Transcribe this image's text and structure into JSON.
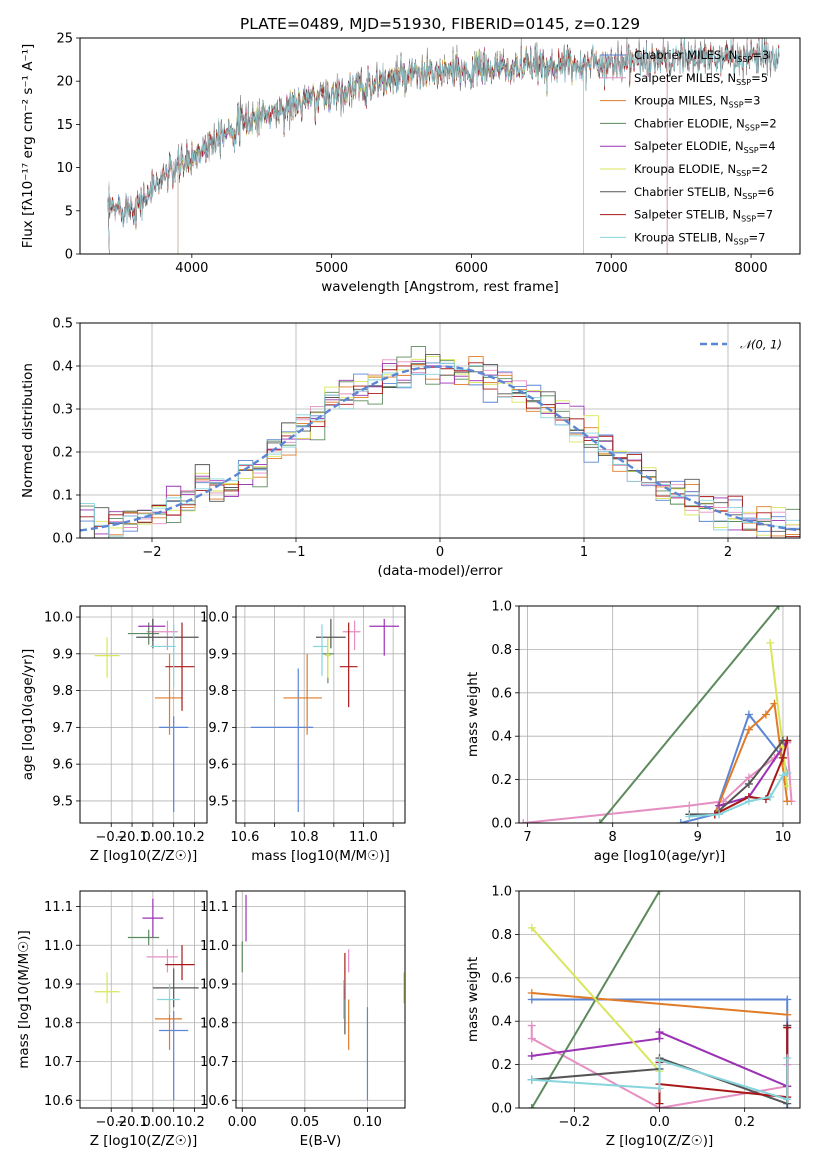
{
  "title": "PLATE=0489, MJD=51930, FIBERID=0145, z=0.129",
  "colors": {
    "Chabrier MILES": "#5b86d6",
    "Salpeter MILES": "#e58fc3",
    "Kroupa MILES": "#e07b28",
    "Chabrier ELODIE": "#5c8a5c",
    "Salpeter ELODIE": "#9b32b4",
    "Kroupa ELODIE": "#d8e65a",
    "Chabrier STELIB": "#555555",
    "Salpeter STELIB": "#a81818",
    "Kroupa STELIB": "#86d5dd"
  },
  "chart_data": [
    {
      "type": "line",
      "xlabel": "wavelength [Angstrom, rest frame]",
      "ylabel": "Flux [fλ10⁻¹⁷ erg cm⁻² s⁻¹ A⁻¹]",
      "xlim": [
        3200,
        8350
      ],
      "ylim": [
        0,
        25
      ],
      "xticks": [
        4000,
        5000,
        6000,
        7000,
        8000
      ],
      "yticks": [
        0,
        5,
        10,
        15,
        20,
        25
      ],
      "grid": false,
      "legend_position": "right",
      "legend": [
        {
          "name": "Chabrier MILES",
          "sub": "SSP",
          "n": "3"
        },
        {
          "name": "Salpeter MILES",
          "sub": "SSP",
          "n": "5"
        },
        {
          "name": "Kroupa MILES",
          "sub": "SSP",
          "n": "3"
        },
        {
          "name": "Chabrier ELODIE",
          "sub": "SSP",
          "n": "2"
        },
        {
          "name": "Salpeter ELODIE",
          "sub": "SSP",
          "n": "4"
        },
        {
          "name": "Kroupa ELODIE",
          "sub": "SSP",
          "n": "2"
        },
        {
          "name": "Chabrier STELIB",
          "sub": "SSP",
          "n": "6"
        },
        {
          "name": "Salpeter STELIB",
          "sub": "SSP",
          "n": "7"
        },
        {
          "name": "Kroupa STELIB",
          "sub": "SSP",
          "n": "7"
        }
      ],
      "continuum": {
        "x": [
          3400,
          3600,
          3800,
          4000,
          4200,
          4500,
          5000,
          5500,
          6000,
          6500,
          7000,
          7500,
          8000,
          8200
        ],
        "y": [
          5.2,
          5.5,
          9,
          11,
          14,
          16,
          18.5,
          20.5,
          21.2,
          21.8,
          22.2,
          22.6,
          22.9,
          23
        ]
      },
      "model_ranges": {
        "Chabrier MILES": [
          3400,
          7400
        ],
        "Salpeter MILES": [
          3400,
          7400
        ],
        "Kroupa MILES": [
          3400,
          7400
        ],
        "Chabrier ELODIE": [
          3900,
          6800
        ],
        "Salpeter ELODIE": [
          3900,
          6800
        ],
        "Kroupa ELODIE": [
          3900,
          6800
        ],
        "Chabrier STELIB": [
          3400,
          8200
        ],
        "Salpeter STELIB": [
          3400,
          8200
        ],
        "Kroupa STELIB": [
          3400,
          8200
        ]
      }
    },
    {
      "type": "histogram",
      "xlabel": "(data-model)/error",
      "ylabel": "Normed distribution",
      "xlim": [
        -2.5,
        2.5
      ],
      "ylim": [
        0,
        0.5
      ],
      "xticks": [
        -2,
        -1,
        0,
        1,
        2
      ],
      "yticks": [
        0.0,
        0.1,
        0.2,
        0.3,
        0.4,
        0.5
      ],
      "grid": true,
      "legend_position": "top-right",
      "gaussian_label": "𝒩(0, 1)",
      "bins": {
        "start": -2.5,
        "width": 0.1,
        "count": 50
      }
    },
    {
      "type": "errorbar",
      "xlabel": "Z [log10(Z/Z☉)]",
      "ylabel": "age [log10(age/yr)]",
      "xlim": [
        -0.35,
        0.26
      ],
      "ylim": [
        9.44,
        10.03
      ],
      "xticks": [
        -0.2,
        -0.1,
        0.0,
        0.1,
        0.2
      ],
      "yticks": [
        9.5,
        9.6,
        9.7,
        9.8,
        9.9,
        10.0
      ],
      "grid": true,
      "points": [
        {
          "model": "Chabrier MILES",
          "x": 0.1,
          "y": 9.7,
          "xerr": [
            0.07,
            0.07
          ],
          "yerr": [
            0.23,
            0.03
          ]
        },
        {
          "model": "Salpeter MILES",
          "x": 0.07,
          "y": 9.96,
          "xerr": [
            0.1,
            0.05
          ],
          "yerr": [
            0.05,
            0.03
          ]
        },
        {
          "model": "Kroupa MILES",
          "x": 0.08,
          "y": 9.78,
          "xerr": [
            0.07,
            0.06
          ],
          "yerr": [
            0.1,
            0.12
          ]
        },
        {
          "model": "Chabrier ELODIE",
          "x": -0.02,
          "y": 9.955,
          "xerr": [
            0.1,
            0.05
          ],
          "yerr": [
            0.03,
            0.03
          ]
        },
        {
          "model": "Salpeter ELODIE",
          "x": 0.0,
          "y": 9.975,
          "xerr": [
            0.07,
            0.06
          ],
          "yerr": [
            0.04,
            0.02
          ]
        },
        {
          "model": "Kroupa ELODIE",
          "x": -0.22,
          "y": 9.895,
          "xerr": [
            0.06,
            0.06
          ],
          "yerr": [
            0.06,
            0.05
          ]
        },
        {
          "model": "Chabrier STELIB",
          "x": 0.0,
          "y": 9.945,
          "xerr": [
            0.08,
            0.22
          ],
          "yerr": [
            0.03,
            0.05
          ]
        },
        {
          "model": "Salpeter STELIB",
          "x": 0.14,
          "y": 9.865,
          "xerr": [
            0.08,
            0.06
          ],
          "yerr": [
            0.12,
            0.12
          ]
        },
        {
          "model": "Kroupa STELIB",
          "x": 0.1,
          "y": 9.92,
          "xerr": [
            0.11,
            0.01
          ],
          "yerr": [
            0.11,
            0.06
          ]
        }
      ]
    },
    {
      "type": "errorbar",
      "xlabel": "mass [log10(M/M☉)]",
      "xlim": [
        10.57,
        11.14
      ],
      "ylim": [
        9.44,
        10.03
      ],
      "xticks": [
        10.6,
        10.7,
        10.8,
        10.9,
        11.0,
        11.1
      ],
      "yticks": [
        9.5,
        9.6,
        9.7,
        9.8,
        9.9,
        10.0
      ],
      "tick_labels_x": [
        "10.6",
        "",
        "10.8",
        "",
        "11.0",
        ""
      ],
      "grid": true,
      "points": [
        {
          "model": "Chabrier MILES",
          "x": 10.78,
          "y": 9.7,
          "xerr": [
            0.16,
            0.05
          ],
          "yerr": [
            0.23,
            0.16
          ]
        },
        {
          "model": "Salpeter MILES",
          "x": 10.97,
          "y": 9.96,
          "xerr": [
            0.04,
            0.02
          ],
          "yerr": [
            0.05,
            0.03
          ]
        },
        {
          "model": "Kroupa MILES",
          "x": 10.81,
          "y": 9.78,
          "xerr": [
            0.08,
            0.05
          ],
          "yerr": [
            0.1,
            0.12
          ]
        },
        {
          "model": "Chabrier ELODIE",
          "x": 10.88,
          "y": 9.9,
          "xerr": [
            0.02,
            0.02
          ],
          "yerr": [
            0.08,
            0.04
          ]
        },
        {
          "model": "Salpeter ELODIE",
          "x": 11.07,
          "y": 9.975,
          "xerr": [
            0.05,
            0.05
          ],
          "yerr": [
            0.08,
            0.02
          ]
        },
        {
          "model": "Kroupa ELODIE",
          "x": 10.88,
          "y": 9.895,
          "xerr": [
            0.01,
            0.01
          ],
          "yerr": [
            0.06,
            0.05
          ]
        },
        {
          "model": "Chabrier STELIB",
          "x": 10.89,
          "y": 9.945,
          "xerr": [
            0.05,
            0.05
          ],
          "yerr": [
            0.03,
            0.05
          ]
        },
        {
          "model": "Salpeter STELIB",
          "x": 10.95,
          "y": 9.865,
          "xerr": [
            0.03,
            0.03
          ],
          "yerr": [
            0.11,
            0.12
          ]
        },
        {
          "model": "Kroupa STELIB",
          "x": 10.86,
          "y": 9.92,
          "xerr": [
            0.03,
            0.02
          ],
          "yerr": [
            0.08,
            0.06
          ]
        }
      ]
    },
    {
      "type": "line",
      "xlabel": "age [log10(age/yr)]",
      "ylabel": "mass weight",
      "xlim": [
        6.9,
        10.2
      ],
      "ylim": [
        0,
        1
      ],
      "xticks": [
        7,
        8,
        9,
        10
      ],
      "yticks": [
        0.0,
        0.2,
        0.4,
        0.6,
        0.8,
        1.0
      ],
      "grid": true,
      "series": [
        {
          "model": "Chabrier MILES",
          "x": [
            8.8,
            9.2,
            9.6,
            10.0,
            10.05
          ],
          "y": [
            0.0,
            0.04,
            0.5,
            0.3,
            0.23
          ]
        },
        {
          "model": "Salpeter MILES",
          "x": [
            6.95,
            8.9,
            9.3,
            9.6,
            9.9,
            10.05,
            10.1
          ],
          "y": [
            0.0,
            0.08,
            0.1,
            0.21,
            0.3,
            0.37,
            0.1
          ]
        },
        {
          "model": "Kroupa MILES",
          "x": [
            9.2,
            9.6,
            9.8,
            9.9,
            10.05
          ],
          "y": [
            0.04,
            0.43,
            0.5,
            0.55,
            0.1
          ]
        },
        {
          "model": "Chabrier ELODIE",
          "x": [
            7.85,
            9.95
          ],
          "y": [
            0.0,
            1.0
          ]
        },
        {
          "model": "Salpeter ELODIE",
          "x": [
            9.25,
            9.6,
            10.0,
            10.05
          ],
          "y": [
            0.08,
            0.12,
            0.35,
            0.38
          ]
        },
        {
          "model": "Kroupa ELODIE",
          "x": [
            9.85,
            10.0,
            10.05
          ],
          "y": [
            0.83,
            0.35,
            0.17
          ]
        },
        {
          "model": "Chabrier STELIB",
          "x": [
            8.9,
            9.2,
            9.6,
            10.0,
            10.05
          ],
          "y": [
            0.04,
            0.04,
            0.18,
            0.38,
            0.38
          ]
        },
        {
          "model": "Salpeter STELIB",
          "x": [
            9.2,
            9.6,
            9.8,
            10.0,
            10.05
          ],
          "y": [
            0.04,
            0.12,
            0.11,
            0.3,
            0.38
          ]
        },
        {
          "model": "Kroupa STELIB",
          "x": [
            8.9,
            9.25,
            9.6,
            9.85,
            10.0,
            10.05
          ],
          "y": [
            0.03,
            0.04,
            0.1,
            0.12,
            0.22,
            0.23
          ]
        }
      ]
    },
    {
      "type": "errorbar",
      "xlabel": "Z [log10(Z/Z☉)]",
      "ylabel": "mass [log10(M/M☉)]",
      "xlim": [
        -0.35,
        0.26
      ],
      "ylim": [
        10.58,
        11.14
      ],
      "xticks": [
        -0.2,
        -0.1,
        0.0,
        0.1,
        0.2
      ],
      "yticks": [
        10.6,
        10.7,
        10.8,
        10.9,
        11.0,
        11.1
      ],
      "grid": true,
      "points": [
        {
          "model": "Chabrier MILES",
          "x": 0.1,
          "y": 10.78,
          "xerr": [
            0.07,
            0.07
          ],
          "yerr": [
            0.18,
            0.05
          ]
        },
        {
          "model": "Salpeter MILES",
          "x": 0.07,
          "y": 10.97,
          "xerr": [
            0.1,
            0.05
          ],
          "yerr": [
            0.04,
            0.02
          ]
        },
        {
          "model": "Kroupa MILES",
          "x": 0.08,
          "y": 10.81,
          "xerr": [
            0.07,
            0.06
          ],
          "yerr": [
            0.08,
            0.05
          ]
        },
        {
          "model": "Chabrier ELODIE",
          "x": -0.02,
          "y": 11.02,
          "xerr": [
            0.1,
            0.05
          ],
          "yerr": [
            0.02,
            0.02
          ]
        },
        {
          "model": "Salpeter ELODIE",
          "x": 0.0,
          "y": 11.07,
          "xerr": [
            0.05,
            0.05
          ],
          "yerr": [
            0.05,
            0.05
          ]
        },
        {
          "model": "Kroupa ELODIE",
          "x": -0.22,
          "y": 10.88,
          "xerr": [
            0.06,
            0.06
          ],
          "yerr": [
            0.03,
            0.05
          ]
        },
        {
          "model": "Chabrier STELIB",
          "x": 0.1,
          "y": 10.89,
          "xerr": [
            0.1,
            0.12
          ],
          "yerr": [
            0.05,
            0.05
          ]
        },
        {
          "model": "Salpeter STELIB",
          "x": 0.14,
          "y": 10.95,
          "xerr": [
            0.08,
            0.06
          ],
          "yerr": [
            0.04,
            0.05
          ]
        },
        {
          "model": "Kroupa STELIB",
          "x": 0.08,
          "y": 10.86,
          "xerr": [
            0.06,
            0.05
          ],
          "yerr": [
            0.04,
            0.04
          ]
        }
      ]
    },
    {
      "type": "errorbar",
      "xlabel": "E(B-V)",
      "xlim": [
        -0.005,
        0.13
      ],
      "ylim": [
        10.58,
        11.14
      ],
      "xticks": [
        0.0,
        0.05,
        0.1
      ],
      "yticks": [
        10.6,
        10.7,
        10.8,
        10.9,
        11.0,
        11.1
      ],
      "tick_labels_x": [
        "0.00",
        "0.05",
        "0.10"
      ],
      "grid": true,
      "points": [
        {
          "model": "Chabrier MILES",
          "x": 0.1,
          "y": 10.7,
          "yerr": [
            0.1,
            0.14
          ]
        },
        {
          "model": "Salpeter MILES",
          "x": 0.085,
          "y": 10.97,
          "yerr": [
            0.04,
            0.02
          ]
        },
        {
          "model": "Kroupa MILES",
          "x": 0.085,
          "y": 10.81,
          "yerr": [
            0.08,
            0.05
          ]
        },
        {
          "model": "Chabrier ELODIE",
          "x": 0.0,
          "y": 10.97,
          "yerr": [
            0.04,
            0.04
          ]
        },
        {
          "model": "Salpeter ELODIE",
          "x": 0.003,
          "y": 11.07,
          "yerr": [
            0.06,
            0.06
          ]
        },
        {
          "model": "Kroupa ELODIE",
          "x": 0.129,
          "y": 10.89,
          "yerr": [
            0.04,
            0.04
          ]
        },
        {
          "model": "Chabrier STELIB",
          "x": 0.082,
          "y": 10.83,
          "yerr": [
            0.06,
            0.06
          ]
        },
        {
          "model": "Salpeter STELIB",
          "x": 0.082,
          "y": 10.92,
          "yerr": [
            0.06,
            0.06
          ]
        },
        {
          "model": "Kroupa STELIB",
          "x": 0.081,
          "y": 10.86,
          "yerr": [
            0.05,
            0.05
          ]
        }
      ]
    },
    {
      "type": "line",
      "xlabel": "Z [log10(Z/Z☉)]",
      "ylabel": "mass weight",
      "xlim": [
        -0.33,
        0.33
      ],
      "ylim": [
        0,
        1
      ],
      "xticks": [
        -0.2,
        0.0,
        0.2
      ],
      "yticks": [
        0.0,
        0.2,
        0.4,
        0.6,
        0.8,
        1.0
      ],
      "grid": true,
      "series": [
        {
          "model": "Chabrier MILES",
          "x": [
            -0.3,
            0.3,
            0.3
          ],
          "y": [
            0.5,
            0.5,
            0.0
          ]
        },
        {
          "model": "Salpeter MILES",
          "x": [
            -0.3,
            -0.3,
            0.0,
            0.3,
            0.3
          ],
          "y": [
            0.38,
            0.32,
            0.0,
            0.1,
            0.2
          ]
        },
        {
          "model": "Kroupa MILES",
          "x": [
            -0.3,
            0.3
          ],
          "y": [
            0.53,
            0.43
          ]
        },
        {
          "model": "Chabrier ELODIE",
          "x": [
            -0.3,
            0.0
          ],
          "y": [
            0.0,
            1.0
          ]
        },
        {
          "model": "Salpeter ELODIE",
          "x": [
            -0.3,
            0.0,
            0.0,
            0.3,
            0.3
          ],
          "y": [
            0.24,
            0.32,
            0.35,
            0.1,
            0.38
          ]
        },
        {
          "model": "Kroupa ELODIE",
          "x": [
            -0.3,
            0.0
          ],
          "y": [
            0.83,
            0.17
          ]
        },
        {
          "model": "Chabrier STELIB",
          "x": [
            -0.3,
            0.0,
            0.0,
            0.3,
            0.3
          ],
          "y": [
            0.13,
            0.18,
            0.23,
            0.02,
            0.38
          ]
        },
        {
          "model": "Salpeter STELIB",
          "x": [
            0.0,
            0.0,
            0.0,
            0.3,
            0.3
          ],
          "y": [
            0.02,
            0.21,
            0.11,
            0.05,
            0.37
          ]
        },
        {
          "model": "Kroupa STELIB",
          "x": [
            -0.3,
            0.0,
            0.0,
            0.3,
            0.3
          ],
          "y": [
            0.13,
            0.09,
            0.22,
            0.04,
            0.23
          ]
        }
      ]
    }
  ]
}
